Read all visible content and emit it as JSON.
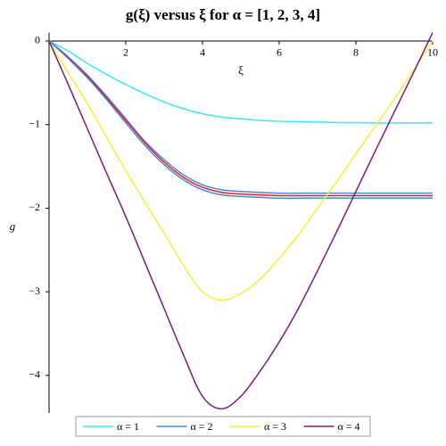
{
  "chart_data": {
    "type": "line",
    "title": "g(ξ)  versus ξ for α = [1, 2, 3, 4]",
    "xlabel": "ξ",
    "ylabel": "g",
    "x": [
      0,
      0.5,
      1,
      1.5,
      2,
      2.5,
      3,
      3.5,
      4,
      4.5,
      5,
      5.5,
      6,
      6.5,
      7,
      7.5,
      8,
      8.5,
      9,
      9.5,
      10
    ],
    "series": [
      {
        "name": "α = 1",
        "color": "#3ee6f0",
        "values": [
          0,
          -0.12,
          -0.27,
          -0.4,
          -0.52,
          -0.63,
          -0.73,
          -0.81,
          -0.87,
          -0.91,
          -0.93,
          -0.95,
          -0.96,
          -0.965,
          -0.97,
          -0.975,
          -0.977,
          -0.98,
          -0.98,
          -0.98,
          -0.98
        ]
      },
      {
        "name": "α = 2",
        "color": "#4a86d8",
        "values": [
          0,
          -0.19,
          -0.41,
          -0.66,
          -0.93,
          -1.2,
          -1.42,
          -1.6,
          -1.72,
          -1.78,
          -1.8,
          -1.81,
          -1.82,
          -1.82,
          -1.82,
          -1.82,
          -1.82,
          -1.82,
          -1.82,
          -1.82,
          -1.82
        ]
      },
      {
        "color": "#e02020",
        "values": [
          0,
          -0.2,
          -0.42,
          -0.68,
          -0.95,
          -1.22,
          -1.45,
          -1.63,
          -1.75,
          -1.81,
          -1.83,
          -1.84,
          -1.85,
          -1.85,
          -1.85,
          -1.85,
          -1.85,
          -1.85,
          -1.85,
          -1.85,
          -1.85
        ]
      },
      {
        "color": "#4a86d8",
        "values": [
          0,
          -0.21,
          -0.44,
          -0.7,
          -0.98,
          -1.25,
          -1.48,
          -1.66,
          -1.78,
          -1.84,
          -1.86,
          -1.87,
          -1.88,
          -1.88,
          -1.88,
          -1.88,
          -1.88,
          -1.88,
          -1.88,
          -1.88,
          -1.88
        ]
      },
      {
        "name": "α = 3",
        "color": "#f2ee3a",
        "values": [
          0,
          -0.38,
          -0.75,
          -1.15,
          -1.55,
          -1.93,
          -2.3,
          -2.68,
          -3.0,
          -3.1,
          -3.02,
          -2.85,
          -2.6,
          -2.32,
          -2.0,
          -1.68,
          -1.35,
          -1.02,
          -0.7,
          -0.35,
          0
        ]
      },
      {
        "name": "α = 4",
        "color": "#7a1a7a",
        "values": [
          0,
          -0.52,
          -1.05,
          -1.58,
          -2.1,
          -2.65,
          -3.2,
          -3.75,
          -4.25,
          -4.4,
          -4.25,
          -3.95,
          -3.6,
          -3.2,
          -2.75,
          -2.28,
          -1.8,
          -1.32,
          -0.85,
          -0.38,
          0.1
        ]
      }
    ],
    "xlim": [
      0,
      10
    ],
    "ylim": [
      -4.45,
      0.1
    ],
    "xticks": [
      2,
      4,
      6,
      8,
      10
    ],
    "yticks": [
      0,
      {
        "value": -1,
        "label": "−1"
      },
      {
        "value": -2,
        "label": "−2"
      },
      {
        "value": -3,
        "label": "−3"
      },
      {
        "value": -4,
        "label": "−4"
      }
    ],
    "legend": "bottom"
  }
}
